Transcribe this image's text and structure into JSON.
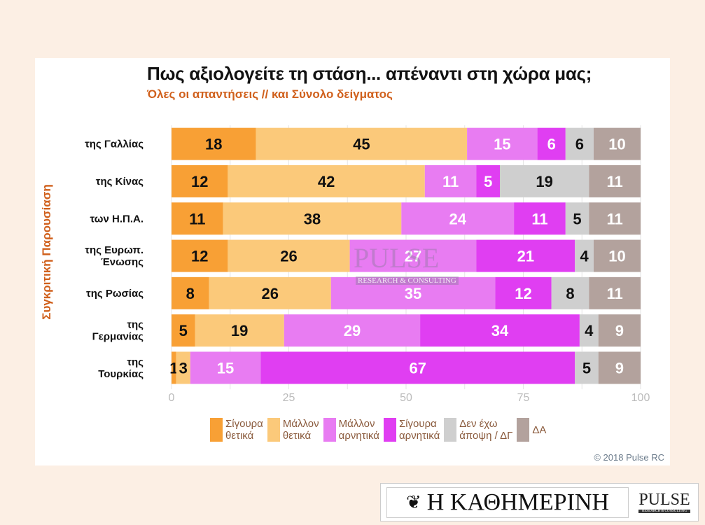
{
  "chart_data": {
    "type": "bar",
    "orientation": "horizontal-stacked",
    "title": "Πως αξιολογείτε τη στάση... απέναντι στη χώρα μας;",
    "subtitle": "Όλες οι απαντήσεις // και Σύνολο δείγματος",
    "ylabel": "Συγκριτική  Παρουσίαση",
    "xlabel": "",
    "xlim": [
      0,
      100
    ],
    "xticks": [
      "0",
      "25",
      "50",
      "75",
      "100"
    ],
    "grid": true,
    "legend_position": "bottom",
    "categories": [
      [
        "της Γαλλίας"
      ],
      [
        "της Κίνας"
      ],
      [
        "των Η.Π.Α."
      ],
      [
        "της Ευρωπ.",
        "Ένωσης"
      ],
      [
        "της Ρωσίας"
      ],
      [
        "της",
        "Γερμανίας"
      ],
      [
        "της",
        "Τουρκίας"
      ]
    ],
    "series": [
      {
        "name": "Σίγουρα θετικά",
        "legend": [
          "Σίγουρα",
          "θετικά"
        ],
        "color": "#f8a035",
        "label_color": "#111111",
        "values": [
          18,
          12,
          11,
          12,
          8,
          5,
          1
        ]
      },
      {
        "name": "Μάλλον θετικά",
        "legend": [
          "Μάλλον",
          "θετικά"
        ],
        "color": "#fbc97a",
        "label_color": "#111111",
        "values": [
          45,
          42,
          38,
          26,
          26,
          19,
          3
        ]
      },
      {
        "name": "Μάλλον αρνητικά",
        "legend": [
          "Μάλλον",
          "αρνητικά"
        ],
        "color": "#e87cf2",
        "label_color": "#ffffff",
        "values": [
          15,
          11,
          24,
          27,
          35,
          29,
          15
        ]
      },
      {
        "name": "Σίγουρα αρνητικά",
        "legend": [
          "Σίγουρα",
          "αρνητικά"
        ],
        "color": "#e03ef2",
        "label_color": "#ffffff",
        "values": [
          6,
          5,
          11,
          21,
          12,
          34,
          67
        ]
      },
      {
        "name": "Δεν έχω άποψη / ΔΓ",
        "legend": [
          "Δεν έχω",
          "άποψη / ΔΓ"
        ],
        "color": "#cfcfcf",
        "label_color": "#111111",
        "values": [
          6,
          19,
          5,
          4,
          8,
          4,
          5
        ]
      },
      {
        "name": "ΔΑ",
        "legend": [
          "ΔΑ"
        ],
        "color": "#b3a29d",
        "label_color": "#ffffff",
        "values": [
          10,
          11,
          11,
          10,
          11,
          9,
          9
        ]
      }
    ]
  },
  "copyright": "© 2018 Pulse RC",
  "watermark": {
    "main": "PULSE",
    "sub": "RESEARCH & CONSULTING"
  },
  "logos": {
    "kathimerini": "Η ΚΑΘΗΜΕΡΙΝΗ",
    "pulse": "PULSE",
    "pulse_sub": "RESEARCH & CONSULTING"
  }
}
